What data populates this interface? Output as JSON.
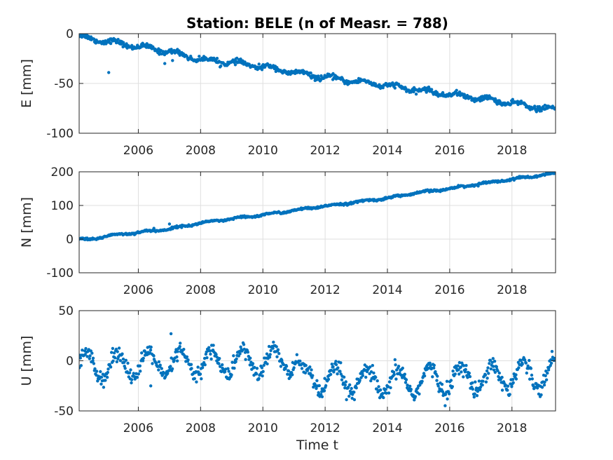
{
  "chart_data": {
    "type": "scatter",
    "title": "Station: BELE (n of Measr. = 788)",
    "xlabel": "Time t",
    "n_points": 788,
    "xlim": [
      2004.1,
      2019.4
    ],
    "xticks": [
      2006,
      2008,
      2010,
      2012,
      2014,
      2016,
      2018
    ],
    "marker_color": "#0072bd",
    "grid": true,
    "panels": [
      {
        "ylabel": "E [mm]",
        "ylim": [
          -100,
          0
        ],
        "yticks": [
          0,
          -50,
          -100
        ],
        "trend": [
          [
            2004.1,
            -3
          ],
          [
            2006,
            -13
          ],
          [
            2007,
            -18
          ],
          [
            2008,
            -26
          ],
          [
            2009,
            -29
          ],
          [
            2010,
            -33
          ],
          [
            2011,
            -39
          ],
          [
            2012,
            -44
          ],
          [
            2013,
            -48
          ],
          [
            2014,
            -52
          ],
          [
            2015,
            -57
          ],
          [
            2016,
            -61
          ],
          [
            2017,
            -65
          ],
          [
            2018,
            -70
          ],
          [
            2019.4,
            -77
          ]
        ],
        "seasonal_amplitude": 2,
        "noise": 1.2,
        "outliers": [
          [
            2005.05,
            -39
          ],
          [
            2006.85,
            -30
          ],
          [
            2007.1,
            -27
          ]
        ]
      },
      {
        "ylabel": "N [mm]",
        "ylim": [
          -100,
          200
        ],
        "yticks": [
          200,
          100,
          0,
          -100
        ],
        "trend": [
          [
            2004.1,
            0
          ],
          [
            2004.5,
            -1
          ],
          [
            2005,
            10
          ],
          [
            2006,
            20
          ],
          [
            2007,
            30
          ],
          [
            2008,
            48
          ],
          [
            2009,
            60
          ],
          [
            2010,
            72
          ],
          [
            2011,
            85
          ],
          [
            2012,
            98
          ],
          [
            2013,
            110
          ],
          [
            2014,
            122
          ],
          [
            2015,
            138
          ],
          [
            2016,
            150
          ],
          [
            2017,
            165
          ],
          [
            2018,
            178
          ],
          [
            2019.4,
            195
          ]
        ],
        "seasonal_amplitude": 2,
        "noise": 1.5,
        "outliers": [
          [
            2007.0,
            45
          ],
          [
            2006.5,
            32
          ]
        ]
      },
      {
        "ylabel": "U [mm]",
        "ylim": [
          -50,
          50
        ],
        "yticks": [
          50,
          0,
          -50
        ],
        "trend": [
          [
            2004.1,
            -5
          ],
          [
            2011.1,
            0
          ],
          [
            2011.3,
            -18
          ],
          [
            2014,
            -22
          ],
          [
            2019.4,
            -12
          ]
        ],
        "seasonal_amplitude": 13,
        "seasonal_phase": 0.1,
        "noise": 4,
        "outliers": [
          [
            2007.05,
            27
          ],
          [
            2006.4,
            -25
          ],
          [
            2011.9,
            -28
          ]
        ]
      }
    ]
  }
}
